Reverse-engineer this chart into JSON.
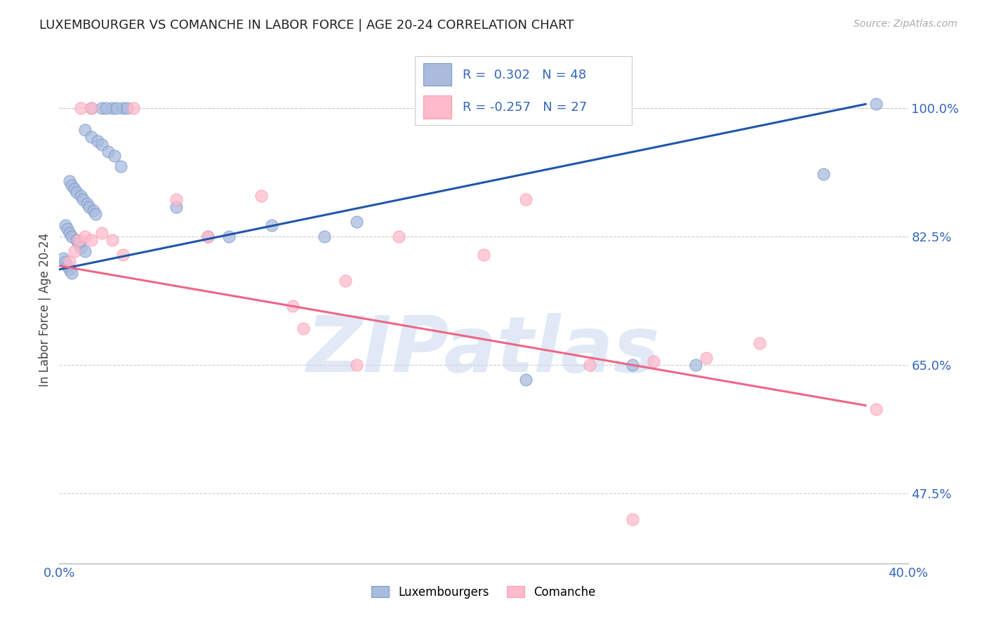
{
  "title": "LUXEMBOURGER VS COMANCHE IN LABOR FORCE | AGE 20-24 CORRELATION CHART",
  "source_text": "Source: ZipAtlas.com",
  "ylabel": "In Labor Force | Age 20-24",
  "xlim": [
    0.0,
    40.0
  ],
  "ylim": [
    38.0,
    107.0
  ],
  "yticks": [
    47.5,
    65.0,
    82.5,
    100.0
  ],
  "ytick_labels": [
    "47.5%",
    "65.0%",
    "82.5%",
    "100.0%"
  ],
  "xtick_positions": [
    0.0,
    5.0,
    10.0,
    15.0,
    20.0,
    25.0,
    30.0,
    35.0,
    40.0
  ],
  "grid_color": "#cccccc",
  "background_color": "#ffffff",
  "blue_fill_color": "#aabbdd",
  "blue_edge_color": "#7799cc",
  "pink_fill_color": "#ffbbcc",
  "pink_edge_color": "#ff99aa",
  "blue_line_color": "#2255aa",
  "pink_line_color": "#ee6688",
  "r_blue": 0.302,
  "n_blue": 48,
  "r_pink": -0.257,
  "n_pink": 27,
  "watermark": "ZIPatlas",
  "legend_blue_label": "Luxembourgers",
  "legend_pink_label": "Comanche",
  "blue_line_y0": 78.0,
  "blue_line_y1": 100.5,
  "blue_line_x0": 0.0,
  "blue_line_x1": 38.0,
  "pink_line_y0": 78.5,
  "pink_line_y1": 59.5,
  "pink_line_x0": 0.0,
  "pink_line_x1": 38.0,
  "blue_points_x": [
    1.5,
    2.0,
    2.5,
    3.0,
    2.2,
    2.7,
    3.2,
    1.2,
    1.5,
    1.8,
    2.0,
    2.3,
    2.6,
    2.9,
    0.5,
    0.6,
    0.7,
    0.8,
    1.0,
    1.1,
    1.3,
    1.4,
    1.6,
    1.7,
    0.3,
    0.4,
    0.5,
    0.6,
    0.8,
    0.9,
    1.0,
    1.2,
    0.2,
    0.3,
    0.4,
    0.5,
    0.6,
    5.5,
    7.0,
    8.0,
    10.0,
    12.5,
    14.0,
    22.0,
    30.0,
    36.0,
    38.5,
    27.0
  ],
  "blue_points_y": [
    100.0,
    100.0,
    100.0,
    100.0,
    100.0,
    100.0,
    100.0,
    97.0,
    96.0,
    95.5,
    95.0,
    94.0,
    93.5,
    92.0,
    90.0,
    89.5,
    89.0,
    88.5,
    88.0,
    87.5,
    87.0,
    86.5,
    86.0,
    85.5,
    84.0,
    83.5,
    83.0,
    82.5,
    82.0,
    81.5,
    81.0,
    80.5,
    79.5,
    79.0,
    78.5,
    78.0,
    77.5,
    86.5,
    82.5,
    82.5,
    84.0,
    82.5,
    84.5,
    63.0,
    65.0,
    91.0,
    100.5,
    65.0
  ],
  "pink_points_x": [
    0.5,
    0.7,
    0.9,
    1.2,
    1.5,
    2.0,
    2.5,
    3.0,
    3.5,
    5.5,
    7.0,
    9.5,
    11.0,
    13.5,
    16.0,
    20.0,
    22.0,
    25.0,
    28.0,
    30.5,
    33.0,
    27.0,
    1.0,
    1.5,
    11.5,
    14.0,
    38.5
  ],
  "pink_points_y": [
    79.0,
    80.5,
    82.0,
    82.5,
    82.0,
    83.0,
    82.0,
    80.0,
    100.0,
    87.5,
    82.5,
    88.0,
    73.0,
    76.5,
    82.5,
    80.0,
    87.5,
    65.0,
    65.5,
    66.0,
    68.0,
    44.0,
    100.0,
    100.0,
    70.0,
    65.0,
    59.0
  ]
}
